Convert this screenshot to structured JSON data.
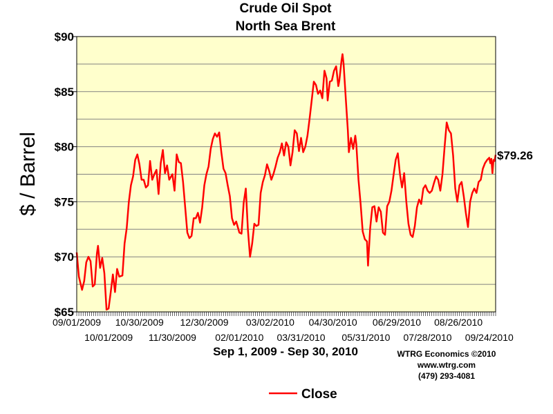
{
  "chart_data": {
    "type": "line",
    "title": "Crude Oil Spot",
    "subtitle": "North Sea Brent",
    "ylabel": "$ / Barrel",
    "range_label": "Sep 1, 2009 - Sep 30, 2010",
    "ylim": [
      65,
      90
    ],
    "yticks": [
      65,
      70,
      75,
      80,
      85,
      90
    ],
    "ytick_labels": [
      "$65",
      "$70",
      "$75",
      "$80",
      "$85",
      "$90"
    ],
    "x_range": [
      "2009-09-01",
      "2010-09-30"
    ],
    "xtick_labels": [
      {
        "date": "2009-09-01",
        "label": "09/01/2009",
        "row": 1
      },
      {
        "date": "2009-10-01",
        "label": "10/01/2009",
        "row": 2
      },
      {
        "date": "2009-10-30",
        "label": "10/30/2009",
        "row": 1
      },
      {
        "date": "2009-11-30",
        "label": "11/30/2009",
        "row": 2
      },
      {
        "date": "2009-12-30",
        "label": "12/30/2009",
        "row": 1
      },
      {
        "date": "2010-02-01",
        "label": "02/01/2010",
        "row": 2
      },
      {
        "date": "2010-03-02",
        "label": "03/02/2010",
        "row": 1
      },
      {
        "date": "2010-03-31",
        "label": "03/31/2010",
        "row": 2
      },
      {
        "date": "2010-04-30",
        "label": "04/30/2010",
        "row": 1
      },
      {
        "date": "2010-05-31",
        "label": "05/31/2010",
        "row": 2
      },
      {
        "date": "2010-06-29",
        "label": "06/29/2010",
        "row": 1
      },
      {
        "date": "2010-07-28",
        "label": "07/28/2010",
        "row": 2
      },
      {
        "date": "2010-08-26",
        "label": "08/26/2010",
        "row": 1
      },
      {
        "date": "2010-09-24",
        "label": "09/24/2010",
        "row": 2
      }
    ],
    "grid": true,
    "legend_position": "bottom-center",
    "last_value_label": "$79.26",
    "series": [
      {
        "name": "Close",
        "color": "#ff0000",
        "points": [
          [
            "2009-09-01",
            70.4
          ],
          [
            "2009-09-03",
            68.2
          ],
          [
            "2009-09-06",
            67.0
          ],
          [
            "2009-09-08",
            67.8
          ],
          [
            "2009-09-10",
            69.5
          ],
          [
            "2009-09-12",
            70.0
          ],
          [
            "2009-09-14",
            69.6
          ],
          [
            "2009-09-16",
            67.3
          ],
          [
            "2009-09-18",
            67.5
          ],
          [
            "2009-09-20",
            70.3
          ],
          [
            "2009-09-21",
            71.0
          ],
          [
            "2009-09-23",
            69.0
          ],
          [
            "2009-09-25",
            69.9
          ],
          [
            "2009-09-27",
            68.5
          ],
          [
            "2009-09-29",
            65.2
          ],
          [
            "2009-10-01",
            65.3
          ],
          [
            "2009-10-03",
            66.8
          ],
          [
            "2009-10-05",
            68.4
          ],
          [
            "2009-10-07",
            66.8
          ],
          [
            "2009-10-09",
            68.9
          ],
          [
            "2009-10-11",
            68.2
          ],
          [
            "2009-10-14",
            68.3
          ],
          [
            "2009-10-16",
            71.2
          ],
          [
            "2009-10-18",
            72.6
          ],
          [
            "2009-10-20",
            75.0
          ],
          [
            "2009-10-22",
            76.5
          ],
          [
            "2009-10-24",
            77.3
          ],
          [
            "2009-10-26",
            78.8
          ],
          [
            "2009-10-28",
            79.3
          ],
          [
            "2009-10-30",
            78.4
          ],
          [
            "2009-11-01",
            77.0
          ],
          [
            "2009-11-03",
            77.0
          ],
          [
            "2009-11-05",
            76.3
          ],
          [
            "2009-11-07",
            76.5
          ],
          [
            "2009-11-09",
            78.7
          ],
          [
            "2009-11-11",
            77.0
          ],
          [
            "2009-11-13",
            77.5
          ],
          [
            "2009-11-15",
            77.9
          ],
          [
            "2009-11-17",
            75.7
          ],
          [
            "2009-11-19",
            78.5
          ],
          [
            "2009-11-21",
            79.7
          ],
          [
            "2009-11-23",
            77.6
          ],
          [
            "2009-11-25",
            78.3
          ],
          [
            "2009-11-27",
            77.0
          ],
          [
            "2009-11-30",
            77.5
          ],
          [
            "2009-12-02",
            76.0
          ],
          [
            "2009-12-04",
            79.3
          ],
          [
            "2009-12-06",
            78.6
          ],
          [
            "2009-12-08",
            78.5
          ],
          [
            "2009-12-10",
            76.8
          ],
          [
            "2009-12-12",
            74.5
          ],
          [
            "2009-12-14",
            72.2
          ],
          [
            "2009-12-16",
            71.7
          ],
          [
            "2009-12-18",
            71.9
          ],
          [
            "2009-12-20",
            73.5
          ],
          [
            "2009-12-22",
            73.5
          ],
          [
            "2009-12-24",
            74.0
          ],
          [
            "2009-12-26",
            73.1
          ],
          [
            "2009-12-28",
            74.5
          ],
          [
            "2009-12-30",
            76.5
          ],
          [
            "2010-01-01",
            77.5
          ],
          [
            "2010-01-03",
            78.2
          ],
          [
            "2010-01-05",
            79.8
          ],
          [
            "2010-01-07",
            80.7
          ],
          [
            "2010-01-09",
            81.2
          ],
          [
            "2010-01-11",
            80.9
          ],
          [
            "2010-01-13",
            81.3
          ],
          [
            "2010-01-15",
            79.5
          ],
          [
            "2010-01-17",
            78.0
          ],
          [
            "2010-01-19",
            77.6
          ],
          [
            "2010-01-21",
            76.5
          ],
          [
            "2010-01-23",
            75.5
          ],
          [
            "2010-01-25",
            73.5
          ],
          [
            "2010-01-27",
            72.9
          ],
          [
            "2010-01-29",
            73.2
          ],
          [
            "2010-02-01",
            72.2
          ],
          [
            "2010-02-03",
            72.1
          ],
          [
            "2010-02-05",
            74.9
          ],
          [
            "2010-02-07",
            76.2
          ],
          [
            "2010-02-09",
            72.5
          ],
          [
            "2010-02-11",
            70.0
          ],
          [
            "2010-02-13",
            71.2
          ],
          [
            "2010-02-15",
            73.0
          ],
          [
            "2010-02-17",
            72.8
          ],
          [
            "2010-02-19",
            72.9
          ],
          [
            "2010-02-21",
            75.8
          ],
          [
            "2010-02-23",
            76.8
          ],
          [
            "2010-02-25",
            77.4
          ],
          [
            "2010-02-27",
            78.4
          ],
          [
            "2010-03-01",
            77.8
          ],
          [
            "2010-03-03",
            77.0
          ],
          [
            "2010-03-05",
            77.5
          ],
          [
            "2010-03-07",
            78.2
          ],
          [
            "2010-03-09",
            79.0
          ],
          [
            "2010-03-11",
            79.5
          ],
          [
            "2010-03-13",
            80.3
          ],
          [
            "2010-03-15",
            79.2
          ],
          [
            "2010-03-17",
            80.4
          ],
          [
            "2010-03-19",
            80.0
          ],
          [
            "2010-03-21",
            78.3
          ],
          [
            "2010-03-23",
            79.5
          ],
          [
            "2010-03-25",
            81.5
          ],
          [
            "2010-03-27",
            81.2
          ],
          [
            "2010-03-29",
            79.6
          ],
          [
            "2010-03-31",
            80.8
          ],
          [
            "2010-04-02",
            79.5
          ],
          [
            "2010-04-04",
            80.0
          ],
          [
            "2010-04-06",
            81.0
          ],
          [
            "2010-04-08",
            82.5
          ],
          [
            "2010-04-10",
            84.2
          ],
          [
            "2010-04-12",
            85.9
          ],
          [
            "2010-04-14",
            85.6
          ],
          [
            "2010-04-16",
            84.8
          ],
          [
            "2010-04-18",
            85.1
          ],
          [
            "2010-04-20",
            84.4
          ],
          [
            "2010-04-22",
            86.9
          ],
          [
            "2010-04-24",
            86.2
          ],
          [
            "2010-04-25",
            84.2
          ],
          [
            "2010-04-27",
            85.9
          ],
          [
            "2010-04-29",
            86.0
          ],
          [
            "2010-05-01",
            86.9
          ],
          [
            "2010-05-03",
            87.3
          ],
          [
            "2010-05-05",
            85.5
          ],
          [
            "2010-05-06",
            86.0
          ],
          [
            "2010-05-08",
            87.8
          ],
          [
            "2010-05-09",
            88.4
          ],
          [
            "2010-05-10",
            87.5
          ],
          [
            "2010-05-12",
            84.5
          ],
          [
            "2010-05-14",
            81.5
          ],
          [
            "2010-05-15",
            79.5
          ],
          [
            "2010-05-17",
            80.8
          ],
          [
            "2010-05-19",
            79.8
          ],
          [
            "2010-05-21",
            81.0
          ],
          [
            "2010-05-22",
            80.2
          ],
          [
            "2010-05-24",
            77.0
          ],
          [
            "2010-05-26",
            74.8
          ],
          [
            "2010-05-28",
            72.3
          ],
          [
            "2010-05-30",
            71.6
          ],
          [
            "2010-06-01",
            71.4
          ],
          [
            "2010-06-02",
            69.2
          ],
          [
            "2010-06-04",
            72.6
          ],
          [
            "2010-06-06",
            74.5
          ],
          [
            "2010-06-08",
            74.6
          ],
          [
            "2010-06-10",
            73.2
          ],
          [
            "2010-06-12",
            74.5
          ],
          [
            "2010-06-14",
            74.1
          ],
          [
            "2010-06-16",
            72.2
          ],
          [
            "2010-06-18",
            72.0
          ],
          [
            "2010-06-20",
            74.6
          ],
          [
            "2010-06-22",
            75.0
          ],
          [
            "2010-06-24",
            76.0
          ],
          [
            "2010-06-26",
            77.4
          ],
          [
            "2010-06-28",
            78.8
          ],
          [
            "2010-06-30",
            79.4
          ],
          [
            "2010-07-02",
            77.5
          ],
          [
            "2010-07-04",
            76.3
          ],
          [
            "2010-07-06",
            77.6
          ],
          [
            "2010-07-08",
            75.0
          ],
          [
            "2010-07-10",
            73.0
          ],
          [
            "2010-07-12",
            72.0
          ],
          [
            "2010-07-14",
            71.8
          ],
          [
            "2010-07-16",
            72.8
          ],
          [
            "2010-07-18",
            74.5
          ],
          [
            "2010-07-20",
            75.2
          ],
          [
            "2010-07-22",
            74.8
          ],
          [
            "2010-07-24",
            76.2
          ],
          [
            "2010-07-26",
            76.5
          ],
          [
            "2010-07-28",
            76.0
          ],
          [
            "2010-07-30",
            75.8
          ],
          [
            "2010-08-01",
            76.0
          ],
          [
            "2010-08-03",
            76.7
          ],
          [
            "2010-08-05",
            77.3
          ],
          [
            "2010-08-07",
            77.0
          ],
          [
            "2010-08-09",
            76.0
          ],
          [
            "2010-08-11",
            77.5
          ],
          [
            "2010-08-13",
            80.0
          ],
          [
            "2010-08-15",
            82.2
          ],
          [
            "2010-08-17",
            81.5
          ],
          [
            "2010-08-19",
            81.2
          ],
          [
            "2010-08-21",
            79.2
          ],
          [
            "2010-08-23",
            76.2
          ],
          [
            "2010-08-25",
            75.0
          ],
          [
            "2010-08-27",
            76.5
          ],
          [
            "2010-08-29",
            76.8
          ],
          [
            "2010-08-31",
            75.5
          ],
          [
            "2010-09-02",
            74.0
          ],
          [
            "2010-09-04",
            72.7
          ],
          [
            "2010-09-06",
            75.0
          ],
          [
            "2010-09-08",
            75.8
          ],
          [
            "2010-09-10",
            76.2
          ],
          [
            "2010-09-12",
            75.8
          ],
          [
            "2010-09-14",
            76.8
          ],
          [
            "2010-09-16",
            77.0
          ],
          [
            "2010-09-18",
            78.0
          ],
          [
            "2010-09-20",
            78.5
          ],
          [
            "2010-09-22",
            78.8
          ],
          [
            "2010-09-24",
            79.0
          ],
          [
            "2010-09-25",
            78.5
          ],
          [
            "2010-09-26",
            78.9
          ],
          [
            "2010-09-27",
            77.6
          ],
          [
            "2010-09-28",
            78.8
          ],
          [
            "2010-09-29",
            78.7
          ],
          [
            "2010-09-30",
            79.26
          ]
        ]
      }
    ]
  },
  "credits": {
    "line1": "WTRG Economics  ©2010",
    "line2": "www.wtrg.com",
    "line3": "(479) 293-4081"
  },
  "colors": {
    "plot_background": "#ffffcc",
    "line": "#ff0000",
    "grid": "#808080"
  }
}
